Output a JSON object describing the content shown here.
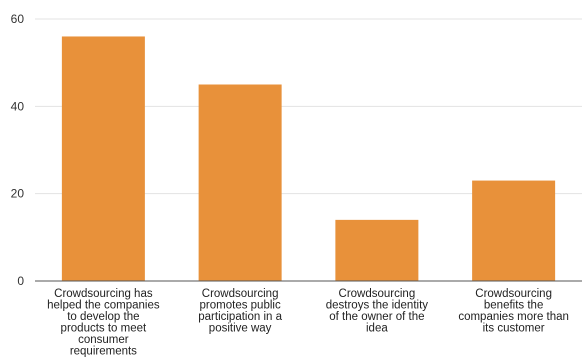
{
  "chart_data": {
    "type": "bar",
    "categories": [
      [
        "Crowdsourcing has",
        "helped the companies",
        "to develop the",
        "products to meet",
        "consumer",
        "requirements"
      ],
      [
        "Crowdsourcing",
        "promotes public",
        "participation in a",
        "positive way"
      ],
      [
        "Crowdsourcing",
        "destroys the identity",
        "of the owner of the",
        "idea"
      ],
      [
        "Crowdsourcing",
        "benefits the",
        "companies more than",
        "its customer"
      ]
    ],
    "values": [
      56,
      45,
      14,
      23
    ],
    "ylim": [
      0,
      60
    ],
    "yticks": [
      0,
      20,
      40,
      60
    ],
    "grid": true,
    "title": "",
    "xlabel": "",
    "ylabel": "",
    "colors": {
      "bar": "#E8913A",
      "grid": "#e3e3e3",
      "axis": "#555555"
    }
  }
}
